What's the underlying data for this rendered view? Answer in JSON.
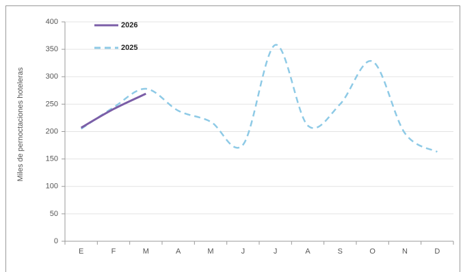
{
  "chart_data": {
    "type": "line",
    "y_label": "Miles de pernoctaciones  hoteleras",
    "categories": [
      "E",
      "F",
      "M",
      "A",
      "M",
      "J",
      "J",
      "A",
      "S",
      "O",
      "N",
      "D"
    ],
    "series": [
      {
        "name": "2026",
        "color": "#7b5ea7",
        "dashed": false,
        "values": [
          207,
          241,
          269,
          null,
          null,
          null,
          null,
          null,
          null,
          null,
          null,
          null
        ]
      },
      {
        "name": "2025",
        "color": "#8ecae6",
        "dashed": true,
        "values": [
          205,
          244,
          278,
          238,
          218,
          176,
          358,
          211,
          250,
          328,
          197,
          163
        ]
      }
    ],
    "ylim": [
      0,
      400
    ],
    "yticks": [
      0,
      50,
      100,
      150,
      200,
      250,
      300,
      350,
      400
    ],
    "grid": true,
    "smooth": true,
    "legend": "top-left"
  }
}
